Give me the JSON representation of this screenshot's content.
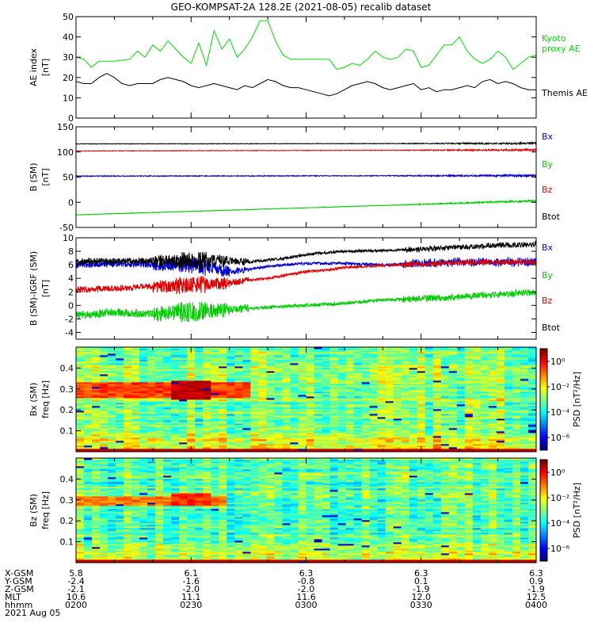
{
  "title": "GEO-KOMPSAT-2A 128.2E (2021-08-05) recalib dataset",
  "chart_data": [
    {
      "type": "line",
      "id": "ae",
      "ylabel": [
        "AE index",
        "[nT]"
      ],
      "ylim": [
        0,
        50
      ],
      "yticks": [
        0,
        10,
        20,
        30,
        40,
        50
      ],
      "xlim": [
        0,
        120
      ],
      "series": [
        {
          "name": "Kyoto proxy AE",
          "label_lines": [
            "Kyoto",
            "proxy AE"
          ],
          "color": "#00dd00",
          "x": [
            0,
            2,
            4,
            6,
            10,
            14,
            16,
            18,
            20,
            22,
            24,
            26,
            28,
            30,
            32,
            34,
            36,
            38,
            40,
            42,
            44,
            46,
            48,
            50,
            52,
            54,
            56,
            58,
            60,
            62,
            64,
            66,
            68,
            70,
            72,
            74,
            76,
            78,
            80,
            82,
            84,
            86,
            88,
            90,
            92,
            94,
            96,
            98,
            100,
            102,
            104,
            106,
            108,
            110,
            112,
            114,
            116,
            118,
            120
          ],
          "y": [
            30,
            29,
            25,
            28,
            28,
            29,
            33,
            30,
            36,
            33,
            38,
            34,
            30,
            27,
            37,
            26,
            43,
            34,
            39,
            30,
            34,
            40,
            48,
            48,
            38,
            31,
            29,
            29,
            29,
            29,
            29,
            29,
            24,
            25,
            27,
            26,
            29,
            33,
            30,
            29,
            30,
            34,
            33,
            25,
            26,
            31,
            36,
            36,
            40,
            33,
            29,
            27,
            29,
            33,
            30,
            24,
            27,
            30,
            31
          ]
        },
        {
          "name": "Themis AE",
          "label_lines": [
            "Themis AE"
          ],
          "color": "#000000",
          "x": [
            0,
            2,
            4,
            6,
            8,
            10,
            12,
            14,
            16,
            18,
            20,
            22,
            24,
            26,
            28,
            30,
            32,
            34,
            36,
            38,
            40,
            42,
            44,
            46,
            48,
            50,
            52,
            54,
            56,
            58,
            60,
            62,
            64,
            66,
            68,
            70,
            72,
            74,
            76,
            78,
            80,
            82,
            84,
            86,
            88,
            90,
            92,
            94,
            96,
            98,
            100,
            102,
            104,
            106,
            108,
            110,
            112,
            114,
            116,
            118,
            120
          ],
          "y": [
            18,
            17,
            17,
            20,
            22,
            20,
            17,
            16,
            17,
            17,
            17,
            19,
            20,
            19,
            18,
            16,
            15,
            16,
            17,
            16,
            15,
            14,
            16,
            15,
            17,
            19,
            18,
            16,
            15,
            15,
            14,
            13,
            12,
            11,
            12,
            14,
            16,
            17,
            18,
            17,
            15,
            14,
            15,
            16,
            17,
            14,
            15,
            13,
            14,
            14,
            15,
            16,
            15,
            18,
            19,
            17,
            18,
            17,
            15,
            14,
            14
          ]
        }
      ]
    },
    {
      "type": "line",
      "id": "bsm",
      "ylabel": [
        "B (SM)",
        "[nT]"
      ],
      "ylim": [
        -50,
        150
      ],
      "yticks": [
        -50,
        0,
        50,
        100,
        150
      ],
      "xlim": [
        0,
        120
      ],
      "series": [
        {
          "name": "Bx",
          "color": "#0000cc",
          "x": [
            0,
            120
          ],
          "y": [
            52,
            53
          ]
        },
        {
          "name": "By",
          "color": "#00cc00",
          "x": [
            0,
            120
          ],
          "y": [
            -25,
            3
          ]
        },
        {
          "name": "Bz",
          "color": "#dd0000",
          "x": [
            0,
            120
          ],
          "y": [
            102,
            104
          ]
        },
        {
          "name": "Btot",
          "color": "#000000",
          "x": [
            0,
            120
          ],
          "y": [
            116,
            117
          ]
        }
      ]
    },
    {
      "type": "line",
      "id": "bigrf",
      "ylabel": [
        "B (SM)-IGRF (SM)",
        "[nT]"
      ],
      "ylim": [
        -5,
        10
      ],
      "yticks": [
        -4,
        -2,
        0,
        2,
        4,
        6,
        8,
        10
      ],
      "xlim": [
        0,
        120
      ],
      "series": [
        {
          "name": "Bx",
          "color": "#0000cc",
          "x": [
            0,
            10,
            20,
            30,
            35,
            40,
            45,
            50,
            55,
            60,
            70,
            80,
            90,
            100,
            110,
            120
          ],
          "y": [
            6.0,
            6.2,
            6.0,
            6.0,
            5.5,
            5.0,
            5.3,
            5.8,
            6.0,
            6.2,
            6.2,
            6.0,
            6.2,
            6.4,
            6.4,
            6.4
          ]
        },
        {
          "name": "By",
          "color": "#00cc00",
          "x": [
            0,
            10,
            20,
            30,
            40,
            50,
            60,
            70,
            80,
            90,
            100,
            110,
            120
          ],
          "y": [
            -1.5,
            -1.0,
            -1.3,
            -1.0,
            -0.6,
            -0.3,
            0.0,
            0.3,
            0.8,
            1.0,
            1.3,
            1.6,
            2.0
          ]
        },
        {
          "name": "Bz",
          "color": "#dd0000",
          "x": [
            0,
            10,
            20,
            30,
            40,
            45,
            50,
            55,
            60,
            65,
            70,
            80,
            90,
            100,
            110,
            120
          ],
          "y": [
            2.3,
            2.5,
            2.8,
            3.0,
            3.3,
            3.7,
            4.0,
            4.5,
            5.0,
            5.2,
            5.6,
            5.9,
            6.1,
            6.3,
            6.4,
            6.4
          ]
        },
        {
          "name": "Btot",
          "color": "#000000",
          "x": [
            0,
            10,
            20,
            30,
            40,
            45,
            50,
            55,
            60,
            65,
            70,
            80,
            90,
            100,
            110,
            120
          ],
          "y": [
            6.5,
            6.5,
            6.6,
            6.6,
            6.6,
            6.4,
            6.7,
            7.0,
            7.5,
            7.8,
            8.0,
            8.1,
            8.3,
            8.6,
            8.9,
            9.0
          ]
        }
      ]
    },
    {
      "type": "heatmap",
      "id": "spec-bx",
      "ylabel": [
        "Bx (SM)",
        "freq [Hz]"
      ],
      "ylim": [
        0,
        0.5
      ],
      "yticks": [
        0.1,
        0.2,
        0.3,
        0.4
      ],
      "xlim": [
        0,
        120
      ],
      "colorbar_label": "PSD [nT²/Hz]",
      "colorbar_ticks": [
        "10⁰",
        "10⁻²",
        "10⁻⁴",
        "10⁻⁶"
      ],
      "colorbar_range_log": [
        -7,
        1
      ],
      "hot_band": {
        "freq": [
          0.26,
          0.33
        ],
        "x": [
          0,
          45
        ],
        "log_psd": -0.5
      },
      "peak_box": {
        "freq": [
          0.25,
          0.34
        ],
        "x": [
          24,
          36
        ],
        "log_psd": 0.5
      },
      "background_log_psd": -3.0,
      "low_freq_log_psd": -2.0
    },
    {
      "type": "heatmap",
      "id": "spec-bz",
      "ylabel": [
        "Bz (SM)",
        "freq [Hz]"
      ],
      "ylim": [
        0,
        0.5
      ],
      "yticks": [
        0.1,
        0.2,
        0.3,
        0.4
      ],
      "xlim": [
        0,
        120
      ],
      "colorbar_label": "PSD [nT²/Hz]",
      "colorbar_ticks": [
        "10⁰",
        "10⁻²",
        "10⁻⁴",
        "10⁻⁶"
      ],
      "colorbar_range_log": [
        -7,
        1
      ],
      "hot_band": {
        "freq": [
          0.27,
          0.32
        ],
        "x": [
          0,
          40
        ],
        "log_psd": -1.0
      },
      "peak_box": {
        "freq": [
          0.27,
          0.33
        ],
        "x": [
          24,
          36
        ],
        "log_psd": -0.3
      },
      "background_log_psd": -3.3,
      "low_freq_log_psd": -2.3
    }
  ],
  "ephemeris": {
    "labels": [
      "X-GSM",
      "Y-GSM",
      "Z-GSM",
      "MLT",
      "hhmm"
    ],
    "date": "2021 Aug 05",
    "columns": [
      {
        "x": 0,
        "values": [
          "5.8",
          "-2.4",
          "-2.1",
          "10.6",
          "0200"
        ]
      },
      {
        "x": 30,
        "values": [
          "6.1",
          "-1.6",
          "-2.0",
          "11.1",
          "0230"
        ]
      },
      {
        "x": 60,
        "values": [
          "6.3",
          "-0.8",
          "-2.0",
          "11.6",
          "0300"
        ]
      },
      {
        "x": 90,
        "values": [
          "6.3",
          "0.1",
          "-1.9",
          "12.0",
          "0330"
        ]
      },
      {
        "x": 120,
        "values": [
          "6.3",
          "0.9",
          "-1.9",
          "12.5",
          "0400"
        ]
      }
    ]
  }
}
